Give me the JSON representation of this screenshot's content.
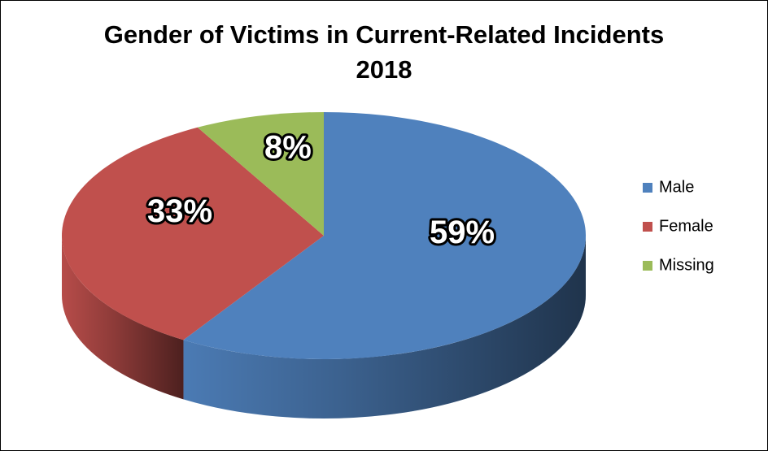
{
  "chart_data": {
    "type": "pie3d",
    "title": "Gender of Victims in Current-Related Incidents",
    "subtitle": "2018",
    "categories": [
      "Male",
      "Female",
      "Missing"
    ],
    "values": [
      59,
      33,
      8
    ],
    "value_labels": [
      "59%",
      "33%",
      "8%"
    ],
    "colors": [
      "#4f81bd",
      "#c0504d",
      "#9bbb59"
    ],
    "legend": "right"
  }
}
